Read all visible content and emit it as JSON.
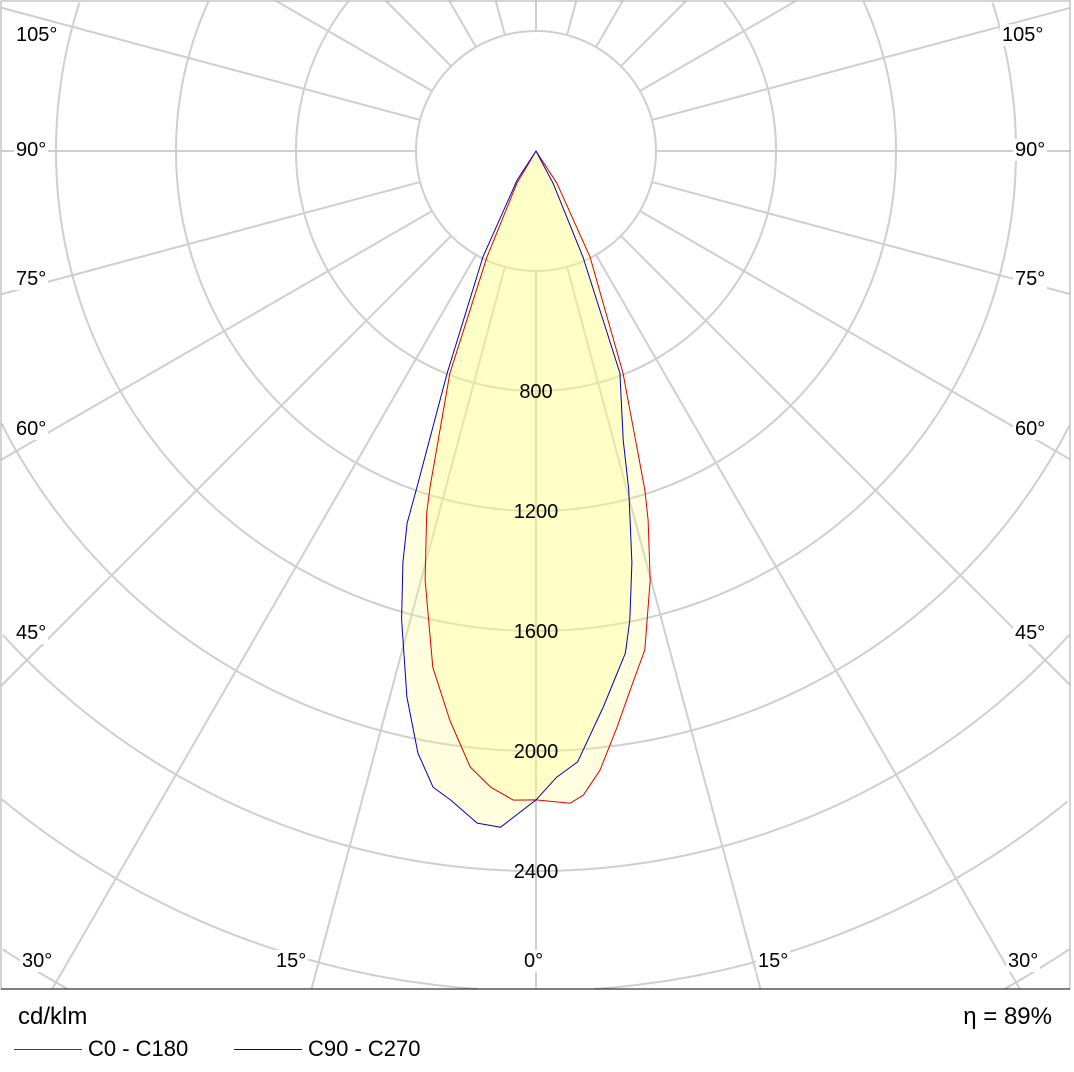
{
  "chart_data": {
    "type": "polar",
    "unit_label": "cd/klm",
    "efficiency_symbol": "η =",
    "efficiency": "89%",
    "ring_step": 400,
    "ring_labels": [
      "800",
      "1200",
      "1600",
      "2000",
      "2400"
    ],
    "rmax_visible": 3200,
    "angle_step_deg": 15,
    "angle_labels": {
      "left": [
        "105°",
        "90°",
        "75°",
        "60°",
        "45°",
        "30°",
        "15°",
        "0°"
      ],
      "right": [
        "105°",
        "90°",
        "75°",
        "60°",
        "45°",
        "30°",
        "15°"
      ]
    },
    "series": [
      {
        "name": "C0 - C180",
        "color": "#e00000",
        "right_plane": "C0",
        "left_plane": "C180",
        "right": [
          [
            0,
            2163
          ],
          [
            3,
            2177
          ],
          [
            4.2,
            2153
          ],
          [
            5.9,
            2075
          ],
          [
            8,
            1940
          ],
          [
            9.9,
            1825
          ],
          [
            12.3,
            1702
          ],
          [
            14.9,
            1480
          ],
          [
            16.9,
            1285
          ],
          [
            17.8,
            1187
          ],
          [
            21.4,
            795
          ],
          [
            27,
            397
          ],
          [
            33,
            128
          ],
          [
            45,
            0
          ]
        ],
        "left": [
          [
            0,
            2163
          ],
          [
            2,
            2165
          ],
          [
            4.1,
            2125
          ],
          [
            6.1,
            2065
          ],
          [
            8.6,
            1920
          ],
          [
            11.3,
            1755
          ],
          [
            14.5,
            1477
          ],
          [
            16.8,
            1260
          ],
          [
            17.5,
            1175
          ],
          [
            21.2,
            794
          ],
          [
            24.8,
            390
          ],
          [
            30.7,
            124
          ],
          [
            45,
            0
          ]
        ]
      },
      {
        "name": "C90 - C270",
        "color": "#0000c0",
        "right_plane": "C90",
        "left_plane": "C270",
        "right": [
          [
            0,
            2163
          ],
          [
            1.9,
            2088
          ],
          [
            3.9,
            2041
          ],
          [
            6.9,
            1867
          ],
          [
            10.1,
            1700
          ],
          [
            11.3,
            1595
          ],
          [
            13.1,
            1410
          ],
          [
            15.3,
            1172
          ],
          [
            16.8,
            1006
          ],
          [
            20.7,
            791
          ],
          [
            23.9,
            387
          ],
          [
            28,
            121
          ],
          [
            45,
            0
          ]
        ],
        "left": [
          [
            0,
            2163
          ],
          [
            3,
            2257
          ],
          [
            5,
            2249
          ],
          [
            7.5,
            2182
          ],
          [
            9.2,
            2148
          ],
          [
            11.1,
            2045
          ],
          [
            13.3,
            1870
          ],
          [
            16,
            1625
          ],
          [
            17.9,
            1443
          ],
          [
            19.1,
            1313
          ],
          [
            19.5,
            1188
          ],
          [
            21.8,
            797
          ],
          [
            26.6,
            395
          ],
          [
            33,
            115
          ],
          [
            45,
            0
          ]
        ]
      }
    ]
  }
}
